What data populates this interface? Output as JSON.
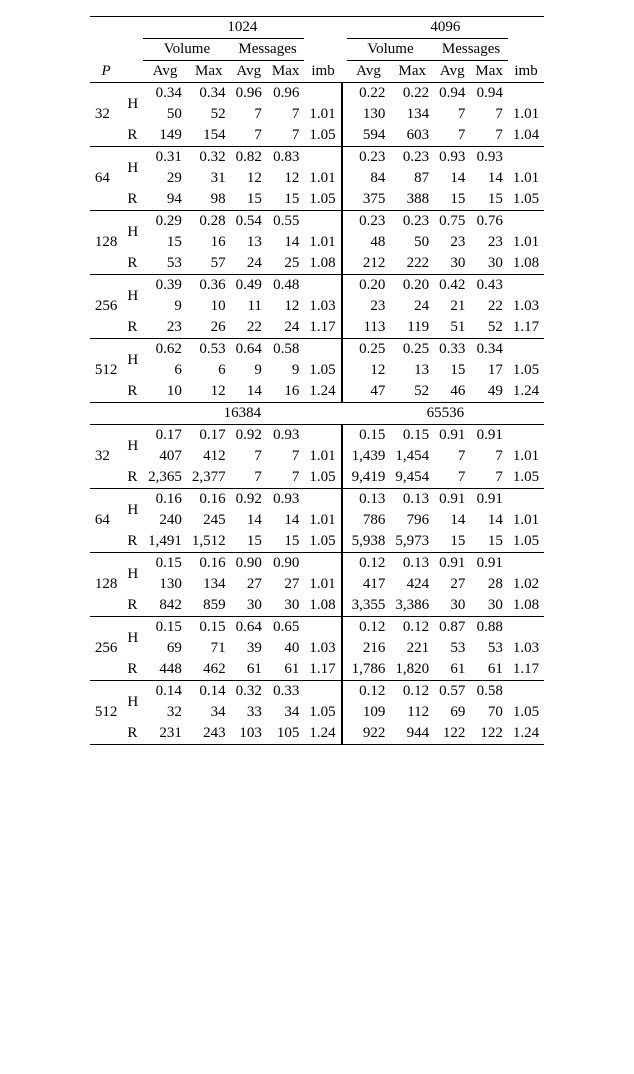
{
  "table": {
    "font_family": "Times New Roman, serif",
    "font_size_pt": 11,
    "background_color": "#ffffff",
    "text_color": "#000000",
    "rule_color": "#000000",
    "col_header_P": "P",
    "col_header_vol": "Volume",
    "col_header_msg": "Messages",
    "col_sub_avg": "Avg",
    "col_sub_max": "Max",
    "col_imb": "imb",
    "alg_H": "H",
    "alg_R": "R",
    "blocks": [
      {
        "size_left": "1024",
        "size_right": "4096",
        "groups": [
          {
            "P": "32",
            "rows": [
              {
                "alg": "H",
                "L": {
                  "va": "0.34",
                  "vm": "0.34",
                  "ma": "0.96",
                  "mm": "0.96",
                  "imb": ""
                },
                "Rg": {
                  "va": "0.22",
                  "vm": "0.22",
                  "ma": "0.94",
                  "mm": "0.94",
                  "imb": ""
                }
              },
              {
                "alg": "",
                "L": {
                  "va": "50",
                  "vm": "52",
                  "ma": "7",
                  "mm": "7",
                  "imb": "1.01"
                },
                "Rg": {
                  "va": "130",
                  "vm": "134",
                  "ma": "7",
                  "mm": "7",
                  "imb": "1.01"
                }
              },
              {
                "alg": "R",
                "L": {
                  "va": "149",
                  "vm": "154",
                  "ma": "7",
                  "mm": "7",
                  "imb": "1.05"
                },
                "Rg": {
                  "va": "594",
                  "vm": "603",
                  "ma": "7",
                  "mm": "7",
                  "imb": "1.04"
                }
              }
            ]
          },
          {
            "P": "64",
            "rows": [
              {
                "alg": "H",
                "L": {
                  "va": "0.31",
                  "vm": "0.32",
                  "ma": "0.82",
                  "mm": "0.83",
                  "imb": ""
                },
                "Rg": {
                  "va": "0.23",
                  "vm": "0.23",
                  "ma": "0.93",
                  "mm": "0.93",
                  "imb": ""
                }
              },
              {
                "alg": "",
                "L": {
                  "va": "29",
                  "vm": "31",
                  "ma": "12",
                  "mm": "12",
                  "imb": "1.01"
                },
                "Rg": {
                  "va": "84",
                  "vm": "87",
                  "ma": "14",
                  "mm": "14",
                  "imb": "1.01"
                }
              },
              {
                "alg": "R",
                "L": {
                  "va": "94",
                  "vm": "98",
                  "ma": "15",
                  "mm": "15",
                  "imb": "1.05"
                },
                "Rg": {
                  "va": "375",
                  "vm": "388",
                  "ma": "15",
                  "mm": "15",
                  "imb": "1.05"
                }
              }
            ]
          },
          {
            "P": "128",
            "rows": [
              {
                "alg": "H",
                "L": {
                  "va": "0.29",
                  "vm": "0.28",
                  "ma": "0.54",
                  "mm": "0.55",
                  "imb": ""
                },
                "Rg": {
                  "va": "0.23",
                  "vm": "0.23",
                  "ma": "0.75",
                  "mm": "0.76",
                  "imb": ""
                }
              },
              {
                "alg": "",
                "L": {
                  "va": "15",
                  "vm": "16",
                  "ma": "13",
                  "mm": "14",
                  "imb": "1.01"
                },
                "Rg": {
                  "va": "48",
                  "vm": "50",
                  "ma": "23",
                  "mm": "23",
                  "imb": "1.01"
                }
              },
              {
                "alg": "R",
                "L": {
                  "va": "53",
                  "vm": "57",
                  "ma": "24",
                  "mm": "25",
                  "imb": "1.08"
                },
                "Rg": {
                  "va": "212",
                  "vm": "222",
                  "ma": "30",
                  "mm": "30",
                  "imb": "1.08"
                }
              }
            ]
          },
          {
            "P": "256",
            "rows": [
              {
                "alg": "H",
                "L": {
                  "va": "0.39",
                  "vm": "0.36",
                  "ma": "0.49",
                  "mm": "0.48",
                  "imb": ""
                },
                "Rg": {
                  "va": "0.20",
                  "vm": "0.20",
                  "ma": "0.42",
                  "mm": "0.43",
                  "imb": ""
                }
              },
              {
                "alg": "",
                "L": {
                  "va": "9",
                  "vm": "10",
                  "ma": "11",
                  "mm": "12",
                  "imb": "1.03"
                },
                "Rg": {
                  "va": "23",
                  "vm": "24",
                  "ma": "21",
                  "mm": "22",
                  "imb": "1.03"
                }
              },
              {
                "alg": "R",
                "L": {
                  "va": "23",
                  "vm": "26",
                  "ma": "22",
                  "mm": "24",
                  "imb": "1.17"
                },
                "Rg": {
                  "va": "113",
                  "vm": "119",
                  "ma": "51",
                  "mm": "52",
                  "imb": "1.17"
                }
              }
            ]
          },
          {
            "P": "512",
            "rows": [
              {
                "alg": "H",
                "L": {
                  "va": "0.62",
                  "vm": "0.53",
                  "ma": "0.64",
                  "mm": "0.58",
                  "imb": ""
                },
                "Rg": {
                  "va": "0.25",
                  "vm": "0.25",
                  "ma": "0.33",
                  "mm": "0.34",
                  "imb": ""
                }
              },
              {
                "alg": "",
                "L": {
                  "va": "6",
                  "vm": "6",
                  "ma": "9",
                  "mm": "9",
                  "imb": "1.05"
                },
                "Rg": {
                  "va": "12",
                  "vm": "13",
                  "ma": "15",
                  "mm": "17",
                  "imb": "1.05"
                }
              },
              {
                "alg": "R",
                "L": {
                  "va": "10",
                  "vm": "12",
                  "ma": "14",
                  "mm": "16",
                  "imb": "1.24"
                },
                "Rg": {
                  "va": "47",
                  "vm": "52",
                  "ma": "46",
                  "mm": "49",
                  "imb": "1.24"
                }
              }
            ]
          }
        ]
      },
      {
        "size_left": "16384",
        "size_right": "65536",
        "groups": [
          {
            "P": "32",
            "rows": [
              {
                "alg": "H",
                "L": {
                  "va": "0.17",
                  "vm": "0.17",
                  "ma": "0.92",
                  "mm": "0.93",
                  "imb": ""
                },
                "Rg": {
                  "va": "0.15",
                  "vm": "0.15",
                  "ma": "0.91",
                  "mm": "0.91",
                  "imb": ""
                }
              },
              {
                "alg": "",
                "L": {
                  "va": "407",
                  "vm": "412",
                  "ma": "7",
                  "mm": "7",
                  "imb": "1.01"
                },
                "Rg": {
                  "va": "1,439",
                  "vm": "1,454",
                  "ma": "7",
                  "mm": "7",
                  "imb": "1.01"
                }
              },
              {
                "alg": "R",
                "L": {
                  "va": "2,365",
                  "vm": "2,377",
                  "ma": "7",
                  "mm": "7",
                  "imb": "1.05"
                },
                "Rg": {
                  "va": "9,419",
                  "vm": "9,454",
                  "ma": "7",
                  "mm": "7",
                  "imb": "1.05"
                }
              }
            ]
          },
          {
            "P": "64",
            "rows": [
              {
                "alg": "H",
                "L": {
                  "va": "0.16",
                  "vm": "0.16",
                  "ma": "0.92",
                  "mm": "0.93",
                  "imb": ""
                },
                "Rg": {
                  "va": "0.13",
                  "vm": "0.13",
                  "ma": "0.91",
                  "mm": "0.91",
                  "imb": ""
                }
              },
              {
                "alg": "",
                "L": {
                  "va": "240",
                  "vm": "245",
                  "ma": "14",
                  "mm": "14",
                  "imb": "1.01"
                },
                "Rg": {
                  "va": "786",
                  "vm": "796",
                  "ma": "14",
                  "mm": "14",
                  "imb": "1.01"
                }
              },
              {
                "alg": "R",
                "L": {
                  "va": "1,491",
                  "vm": "1,512",
                  "ma": "15",
                  "mm": "15",
                  "imb": "1.05"
                },
                "Rg": {
                  "va": "5,938",
                  "vm": "5,973",
                  "ma": "15",
                  "mm": "15",
                  "imb": "1.05"
                }
              }
            ]
          },
          {
            "P": "128",
            "rows": [
              {
                "alg": "H",
                "L": {
                  "va": "0.15",
                  "vm": "0.16",
                  "ma": "0.90",
                  "mm": "0.90",
                  "imb": ""
                },
                "Rg": {
                  "va": "0.12",
                  "vm": "0.13",
                  "ma": "0.91",
                  "mm": "0.91",
                  "imb": ""
                }
              },
              {
                "alg": "",
                "L": {
                  "va": "130",
                  "vm": "134",
                  "ma": "27",
                  "mm": "27",
                  "imb": "1.01"
                },
                "Rg": {
                  "va": "417",
                  "vm": "424",
                  "ma": "27",
                  "mm": "28",
                  "imb": "1.02"
                }
              },
              {
                "alg": "R",
                "L": {
                  "va": "842",
                  "vm": "859",
                  "ma": "30",
                  "mm": "30",
                  "imb": "1.08"
                },
                "Rg": {
                  "va": "3,355",
                  "vm": "3,386",
                  "ma": "30",
                  "mm": "30",
                  "imb": "1.08"
                }
              }
            ]
          },
          {
            "P": "256",
            "rows": [
              {
                "alg": "H",
                "L": {
                  "va": "0.15",
                  "vm": "0.15",
                  "ma": "0.64",
                  "mm": "0.65",
                  "imb": ""
                },
                "Rg": {
                  "va": "0.12",
                  "vm": "0.12",
                  "ma": "0.87",
                  "mm": "0.88",
                  "imb": ""
                }
              },
              {
                "alg": "",
                "L": {
                  "va": "69",
                  "vm": "71",
                  "ma": "39",
                  "mm": "40",
                  "imb": "1.03"
                },
                "Rg": {
                  "va": "216",
                  "vm": "221",
                  "ma": "53",
                  "mm": "53",
                  "imb": "1.03"
                }
              },
              {
                "alg": "R",
                "L": {
                  "va": "448",
                  "vm": "462",
                  "ma": "61",
                  "mm": "61",
                  "imb": "1.17"
                },
                "Rg": {
                  "va": "1,786",
                  "vm": "1,820",
                  "ma": "61",
                  "mm": "61",
                  "imb": "1.17"
                }
              }
            ]
          },
          {
            "P": "512",
            "rows": [
              {
                "alg": "H",
                "L": {
                  "va": "0.14",
                  "vm": "0.14",
                  "ma": "0.32",
                  "mm": "0.33",
                  "imb": ""
                },
                "Rg": {
                  "va": "0.12",
                  "vm": "0.12",
                  "ma": "0.57",
                  "mm": "0.58",
                  "imb": ""
                }
              },
              {
                "alg": "",
                "L": {
                  "va": "32",
                  "vm": "34",
                  "ma": "33",
                  "mm": "34",
                  "imb": "1.05"
                },
                "Rg": {
                  "va": "109",
                  "vm": "112",
                  "ma": "69",
                  "mm": "70",
                  "imb": "1.05"
                }
              },
              {
                "alg": "R",
                "L": {
                  "va": "231",
                  "vm": "243",
                  "ma": "103",
                  "mm": "105",
                  "imb": "1.24"
                },
                "Rg": {
                  "va": "922",
                  "vm": "944",
                  "ma": "122",
                  "mm": "122",
                  "imb": "1.24"
                }
              }
            ]
          }
        ]
      }
    ]
  }
}
